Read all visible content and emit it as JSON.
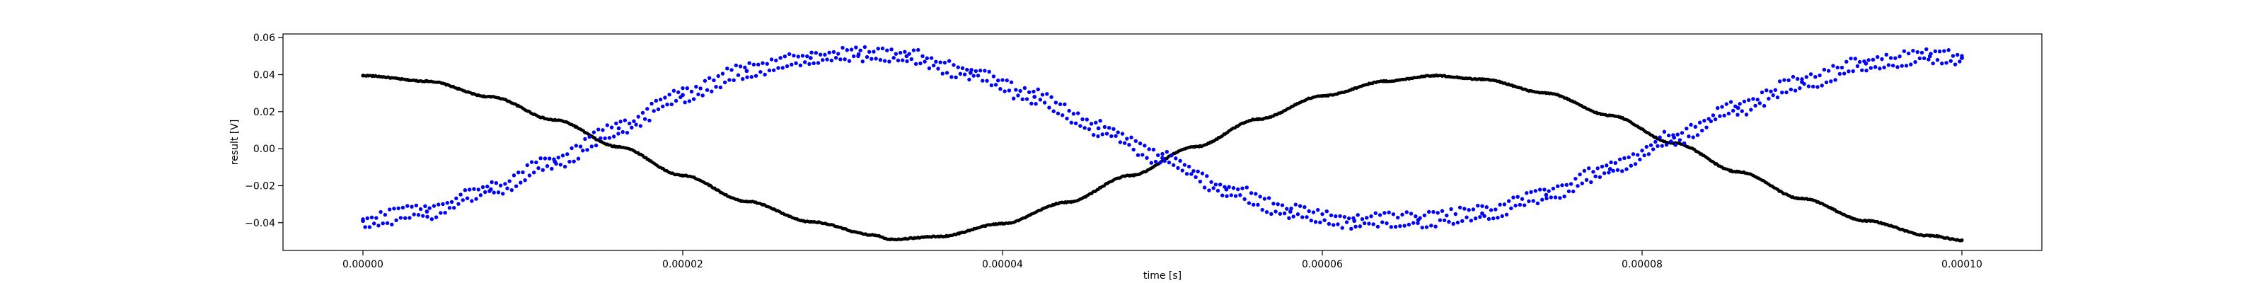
{
  "chart_data": {
    "type": "scatter",
    "title": "",
    "xlabel": "time [s]",
    "ylabel": "result [V]",
    "xlim": [
      -5e-06,
      0.000105
    ],
    "ylim": [
      -0.055,
      0.062
    ],
    "grid": false,
    "legend": "none",
    "x_ticks": [
      "0.00000",
      "0.00002",
      "0.00004",
      "0.00006",
      "0.00008",
      "0.00010"
    ],
    "x_tick_values": [
      0,
      2e-05,
      4e-05,
      6e-05,
      8e-05,
      0.0001
    ],
    "y_ticks": [
      "−0.04",
      "−0.02",
      "0.00",
      "0.02",
      "0.04",
      "0.06"
    ],
    "y_tick_values": [
      -0.04,
      -0.02,
      0,
      0.02,
      0.04,
      0.06
    ],
    "series": [
      {
        "color": "#000000",
        "marker": "dot",
        "x": [
          0,
          4e-06,
          8e-06,
          1.2e-05,
          1.6e-05,
          2e-05,
          2.4e-05,
          2.8e-05,
          3.2e-05,
          3.3e-05,
          3.6e-05,
          4e-05,
          4.4e-05,
          4.8e-05,
          5.2e-05,
          5.6e-05,
          6e-05,
          6.4e-05,
          6.7e-05,
          7e-05,
          7.4e-05,
          7.8e-05,
          8.2e-05,
          8.6e-05,
          9e-05,
          9.4e-05,
          9.8e-05,
          0.0001
        ],
        "y": [
          0.0395,
          0.0365,
          0.028,
          0.0155,
          0.001,
          -0.0145,
          -0.0285,
          -0.0395,
          -0.0467,
          -0.049,
          -0.0475,
          -0.0405,
          -0.029,
          -0.0145,
          0.001,
          0.016,
          0.0285,
          0.0365,
          0.0395,
          0.0375,
          0.03,
          0.018,
          0.003,
          -0.0125,
          -0.027,
          -0.039,
          -0.047,
          -0.0495
        ]
      },
      {
        "color": "#0000ff",
        "marker": "dot",
        "x": [
          0,
          4e-06,
          8e-06,
          1.2e-05,
          1.6e-05,
          2e-05,
          2.4e-05,
          2.8e-05,
          3.1e-05,
          3.4e-05,
          3.8e-05,
          4.2e-05,
          4.6e-05,
          5e-05,
          5.4e-05,
          5.8e-05,
          6.2e-05,
          6.6e-05,
          7e-05,
          7.4e-05,
          7.8e-05,
          8.2e-05,
          8.6e-05,
          9e-05,
          9.4e-05,
          9.8e-05,
          0.0001
        ],
        "y": [
          -0.039,
          -0.034,
          -0.022,
          -0.007,
          0.011,
          0.029,
          0.042,
          0.049,
          0.051,
          0.05,
          0.041,
          0.028,
          0.011,
          -0.005,
          -0.022,
          -0.034,
          -0.039,
          -0.0385,
          -0.035,
          -0.025,
          -0.011,
          0.006,
          0.022,
          0.036,
          0.046,
          0.05,
          0.049
        ]
      }
    ]
  }
}
